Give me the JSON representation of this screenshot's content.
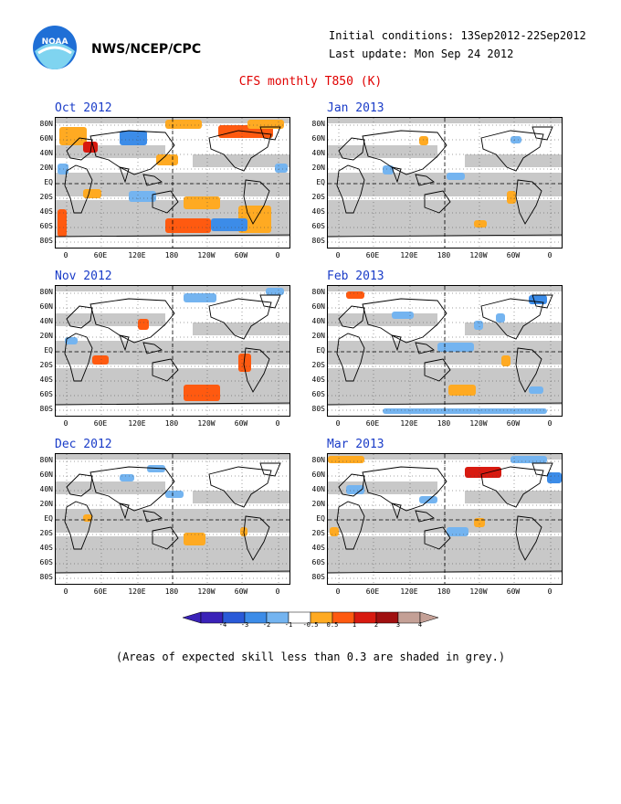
{
  "header": {
    "org": "NWS/NCEP/CPC",
    "initial_conditions": "Initial conditions: 13Sep2012-22Sep2012",
    "last_update": "Last update: Mon Sep 24 2012",
    "logo_text": "NOAA"
  },
  "title": "CFS monthly T850 (K)",
  "panels": [
    {
      "label": "Oct 2012"
    },
    {
      "label": "Jan 2013"
    },
    {
      "label": "Nov 2012"
    },
    {
      "label": "Feb 2013"
    },
    {
      "label": "Dec 2012"
    },
    {
      "label": "Mar 2013"
    }
  ],
  "lat_labels": [
    "80N",
    "60N",
    "40N",
    "20N",
    "EQ",
    "20S",
    "40S",
    "60S",
    "80S"
  ],
  "lon_labels": [
    "0",
    "60E",
    "120E",
    "180",
    "120W",
    "60W",
    "0"
  ],
  "colorbar": {
    "labels": [
      "-4",
      "-3",
      "-2",
      "-1",
      "-0.5",
      "0.5",
      "1",
      "2",
      "3",
      "4"
    ],
    "colors": [
      "#3a22b8",
      "#2a5ad8",
      "#3c8ce8",
      "#74b4f0",
      "#ffffff",
      "#ffaa22",
      "#ff5a10",
      "#d81a10",
      "#a01010",
      "#c4a096"
    ]
  },
  "note": "(Areas of expected skill less than 0.3 are shaded in grey.)"
}
